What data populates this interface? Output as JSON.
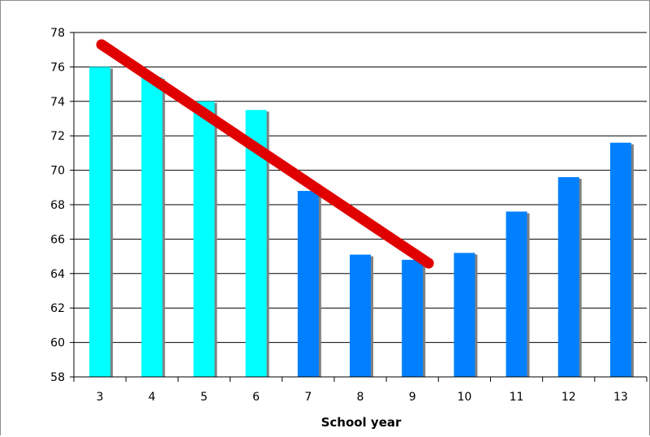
{
  "chart_data": {
    "type": "bar",
    "title": "",
    "xlabel": "School year",
    "ylabel": "",
    "ylim": [
      58,
      78
    ],
    "y_ticks": [
      58,
      60,
      62,
      64,
      66,
      68,
      70,
      72,
      74,
      76,
      78
    ],
    "categories": [
      "3",
      "4",
      "5",
      "6",
      "7",
      "8",
      "9",
      "10",
      "11",
      "12",
      "13"
    ],
    "values": [
      76.0,
      75.4,
      74.0,
      73.5,
      68.8,
      65.1,
      64.8,
      65.2,
      67.6,
      69.6,
      71.6
    ],
    "bar_colors": [
      "#00ffff",
      "#00ffff",
      "#00ffff",
      "#00ffff",
      "#0080ff",
      "#0080ff",
      "#0080ff",
      "#0080ff",
      "#0080ff",
      "#0080ff",
      "#0080ff"
    ],
    "bar_shadow_color": "#808080",
    "grid": true,
    "legend": "none",
    "trend_line": {
      "from_x": "3",
      "from_y": 77.3,
      "to_x": "9",
      "to_y": 64.6,
      "color": "#e00000"
    }
  }
}
